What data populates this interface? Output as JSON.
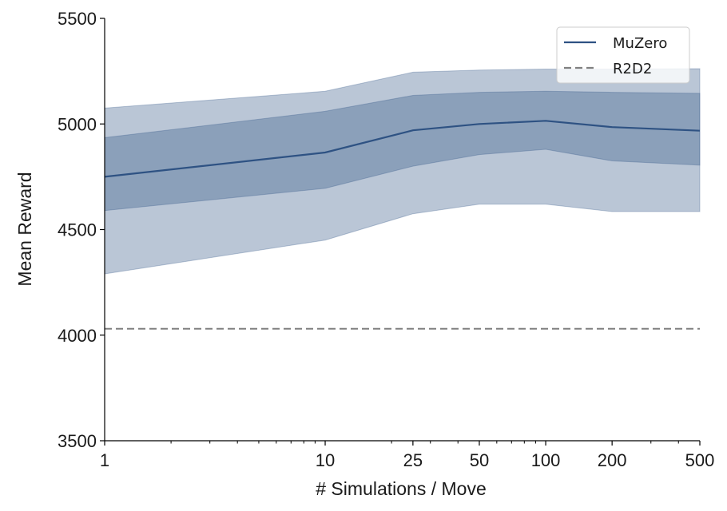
{
  "chart_data": {
    "type": "line",
    "x_scale": "log",
    "x": [
      1,
      10,
      25,
      50,
      100,
      200,
      500
    ],
    "x_ticks": [
      1,
      10,
      25,
      50,
      100,
      200,
      500
    ],
    "x_tick_labels": [
      "1",
      "10",
      "25",
      "50",
      "100",
      "200",
      "500"
    ],
    "xlim": [
      1,
      500
    ],
    "ylim": [
      3500,
      5500
    ],
    "y_ticks": [
      3500,
      4000,
      4500,
      5000,
      5500
    ],
    "y_tick_labels": [
      "3500",
      "4000",
      "4500",
      "5000",
      "5500"
    ],
    "xlabel": "# Simulations / Move",
    "ylabel": "Mean Reward",
    "grid": false,
    "legend_position": "top-right",
    "series": [
      {
        "name": "MuZero",
        "style": "solid",
        "color": "#2e5283",
        "values": [
          4750,
          4865,
          4970,
          5000,
          5015,
          4985,
          4968
        ],
        "band_inner_low": [
          4590,
          4695,
          4800,
          4855,
          4880,
          4825,
          4805
        ],
        "band_inner_high": [
          4935,
          5060,
          5135,
          5150,
          5155,
          5150,
          5145
        ],
        "band_outer_low": [
          4290,
          4450,
          4575,
          4620,
          4620,
          4585,
          4585
        ],
        "band_outer_high": [
          5075,
          5155,
          5245,
          5255,
          5260,
          5260,
          5262
        ]
      },
      {
        "name": "R2D2",
        "style": "dashed",
        "color": "#808080",
        "values": [
          4030,
          4030,
          4030,
          4030,
          4030,
          4030,
          4030
        ]
      }
    ]
  }
}
